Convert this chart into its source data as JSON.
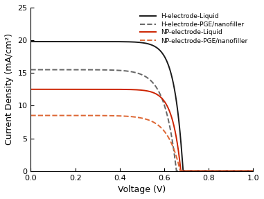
{
  "title": "",
  "xlabel": "Voltage (V)",
  "ylabel": "Current Density (mA/cm²)",
  "xlim": [
    0.0,
    1.0
  ],
  "ylim": [
    0,
    25
  ],
  "xticks": [
    0.0,
    0.2,
    0.4,
    0.6,
    0.8,
    1.0
  ],
  "yticks": [
    0,
    5,
    10,
    15,
    20,
    25
  ],
  "curves": [
    {
      "label": "H-electrode-Liquid",
      "color": "#1a1a1a",
      "linestyle": "solid",
      "linewidth": 1.4,
      "jsc": 19.8,
      "voc": 0.685,
      "ideality": 1.5,
      "j0": 1e-10
    },
    {
      "label": "H-electrode-PGE/nanofiller",
      "color": "#666666",
      "linestyle": "dashed",
      "linewidth": 1.4,
      "jsc": 15.5,
      "voc": 0.655,
      "ideality": 2.0,
      "j0": 1e-08
    },
    {
      "label": "NP-electrode-Liquid",
      "color": "#cc2200",
      "linestyle": "solid",
      "linewidth": 1.4,
      "jsc": 12.5,
      "voc": 0.675,
      "ideality": 1.5,
      "j0": 1e-10
    },
    {
      "label": "NP-electrode-PGE/nanofiller",
      "color": "#dd6633",
      "linestyle": "dashed",
      "linewidth": 1.4,
      "jsc": 8.5,
      "voc": 0.672,
      "ideality": 2.2,
      "j0": 1e-08
    }
  ],
  "legend_loc": "upper right",
  "legend_fontsize": 6.5,
  "axis_fontsize": 9,
  "tick_fontsize": 8,
  "background_color": "#ffffff"
}
